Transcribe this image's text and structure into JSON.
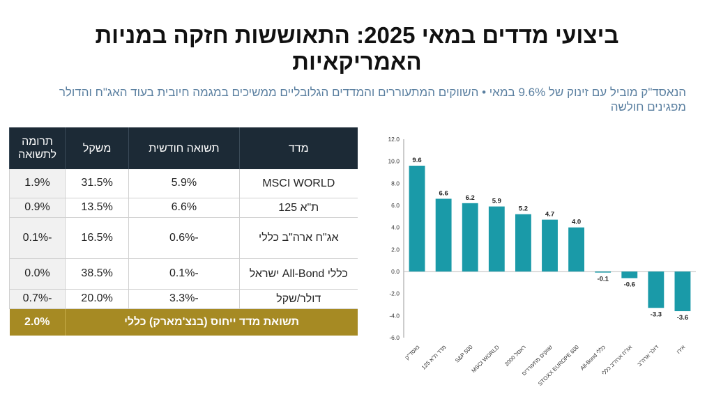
{
  "title": "ביצועי מדדים במאי 2025: התאוששות חזקה במניות האמריקאיות",
  "subtitle": "הנאסד\"ק מוביל עם זינוק של 9.6% במאי • השווקים המתעוררים והמדדים הגלובליים ממשיכים במגמה חיובית בעוד האג\"ח והדולר מפגינים חולשה",
  "table": {
    "headers": {
      "index": "מדד",
      "monthly": "תשואה חודשית",
      "weight": "משקל",
      "contribution": "תרומה לתשואה"
    },
    "rows": [
      {
        "index": "MSCI WORLD",
        "monthly": "5.9%",
        "weight": "31.5%",
        "contribution": "1.9%"
      },
      {
        "index": "ת\"א 125",
        "monthly": "6.6%",
        "weight": "13.5%",
        "contribution": "0.9%"
      },
      {
        "index": "אג\"ח ארה\"ב כללי",
        "monthly": "-0.6%",
        "weight": "16.5%",
        "contribution": "-0.1%"
      },
      {
        "index": "כללי All-Bond ישראל",
        "monthly": "-0.1%",
        "weight": "38.5%",
        "contribution": "0.0%"
      },
      {
        "index": "דולר/שקל",
        "monthly": "-3.3%",
        "weight": "20.0%",
        "contribution": "-0.7%"
      }
    ],
    "total": {
      "label": "תשואת מדד ייחוס (בנצ'מארק) כללי",
      "value": "2.0%"
    }
  },
  "colors": {
    "bar": "#1a9aa8",
    "header_bg": "#1c2a36",
    "total_bg": "#a68a23",
    "subtitle": "#5a7fa0"
  },
  "chart_data": {
    "type": "bar",
    "categories": [
      "נאסד\"ק",
      "מדד ת\"א 125",
      "S&P 500",
      "MSCI WORLD",
      "ראסל 2000",
      "שווקים מתעוררים",
      "STOXX EUROPE 600",
      "All-Bond כללי",
      "אג\"ח ארה\"ב כללי",
      "דולר ארה\"ב",
      "אירו"
    ],
    "values": [
      9.6,
      6.6,
      6.2,
      5.9,
      5.2,
      4.7,
      4.0,
      -0.1,
      -0.6,
      -3.3,
      -3.6
    ],
    "value_labels": [
      "9.6",
      "6.6",
      "6.2",
      "5.9",
      "5.2",
      "4.7",
      "4.0",
      "-0.1",
      "-0.6",
      "-3.3",
      "-3.6"
    ],
    "ylim": [
      -6,
      12
    ],
    "yticks": [
      "-6.0",
      "-4.0",
      "-2.0",
      "0.0",
      "2.0",
      "4.0",
      "6.0",
      "8.0",
      "10.0",
      "12.0"
    ],
    "title": "",
    "xlabel": "",
    "ylabel": "",
    "grid": false
  }
}
